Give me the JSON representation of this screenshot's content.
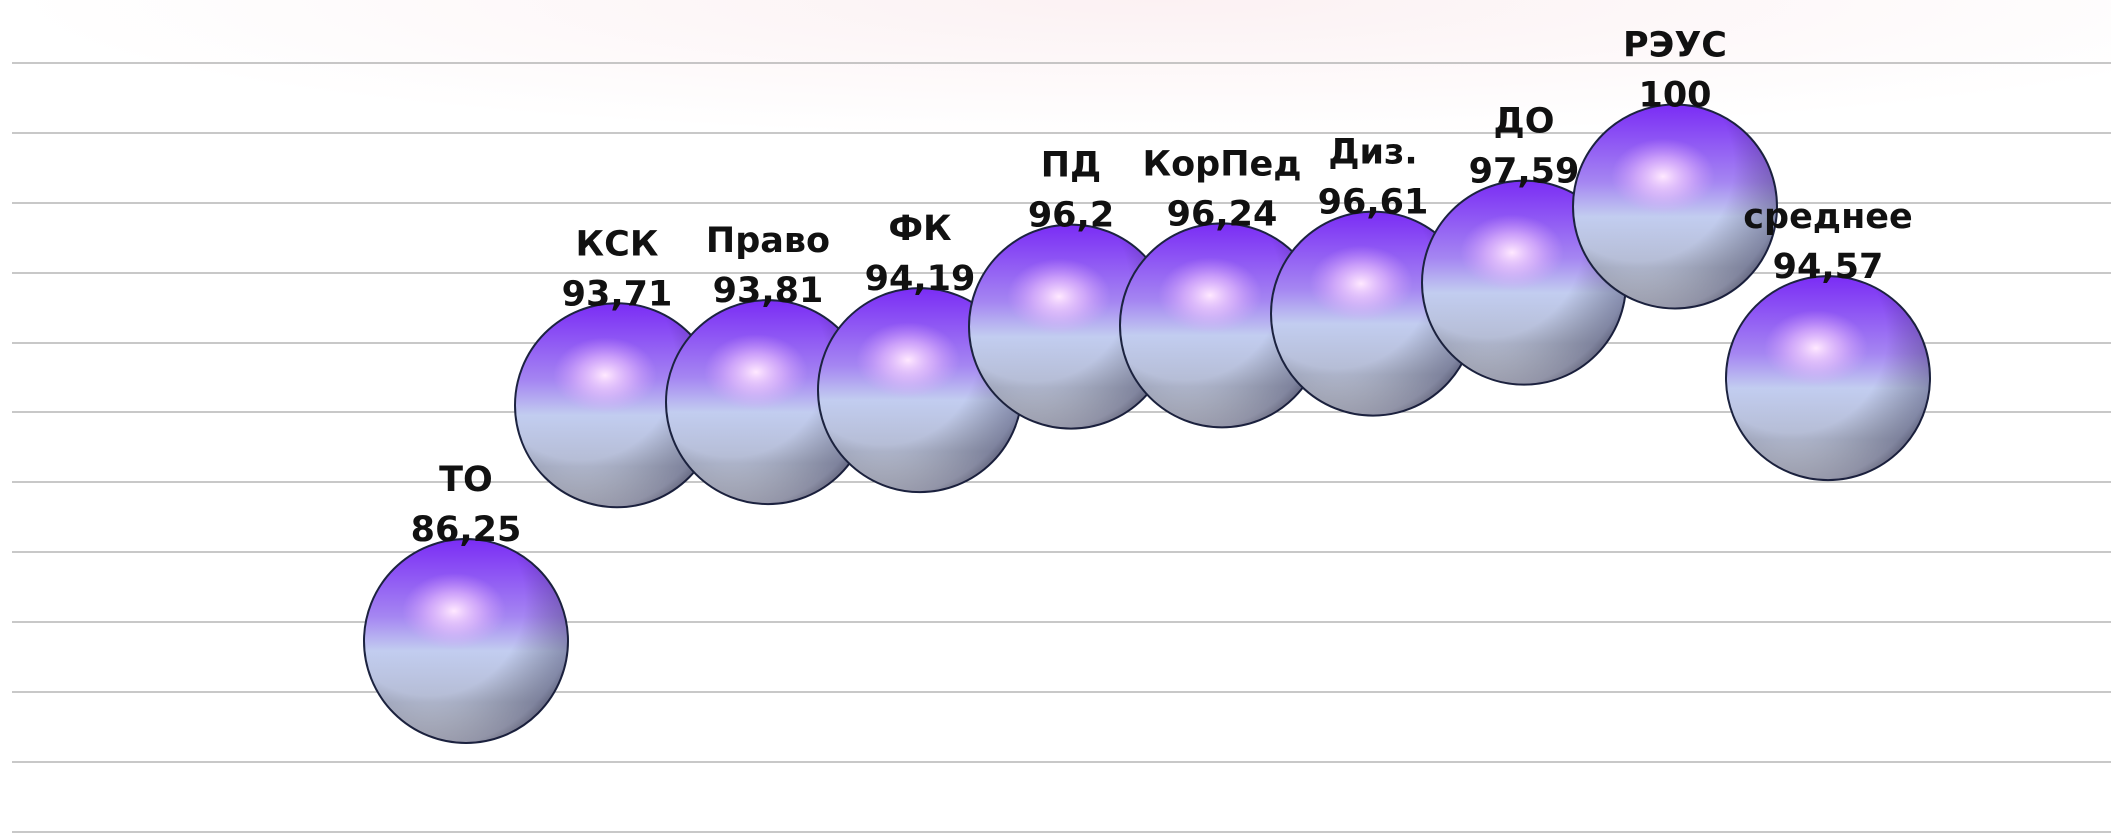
{
  "chart_data": {
    "type": "scatter",
    "categories": [
      "ТО",
      "КСК",
      "Право",
      "ФК",
      "ПД",
      "КорПед",
      "Диз.",
      "ДО",
      "РЭУС",
      "среднее"
    ],
    "values": [
      86.25,
      93.71,
      93.81,
      94.19,
      96.2,
      96.24,
      96.61,
      97.59,
      100,
      94.57
    ],
    "value_labels": [
      "86,25",
      "93,71",
      "93,81",
      "94,19",
      "96,2",
      "96,24",
      "96,61",
      "97,59",
      "100",
      "94,57"
    ],
    "title": "",
    "xlabel": "",
    "ylabel": "",
    "grid": true,
    "marker": "sphere",
    "colors": {
      "top": "#7a2cf5",
      "bottom": "#c8cfe6",
      "edge": "#1c2340",
      "highlight": "#fbe0ff",
      "grid": "#a6a6a6",
      "label": "#111111"
    }
  }
}
